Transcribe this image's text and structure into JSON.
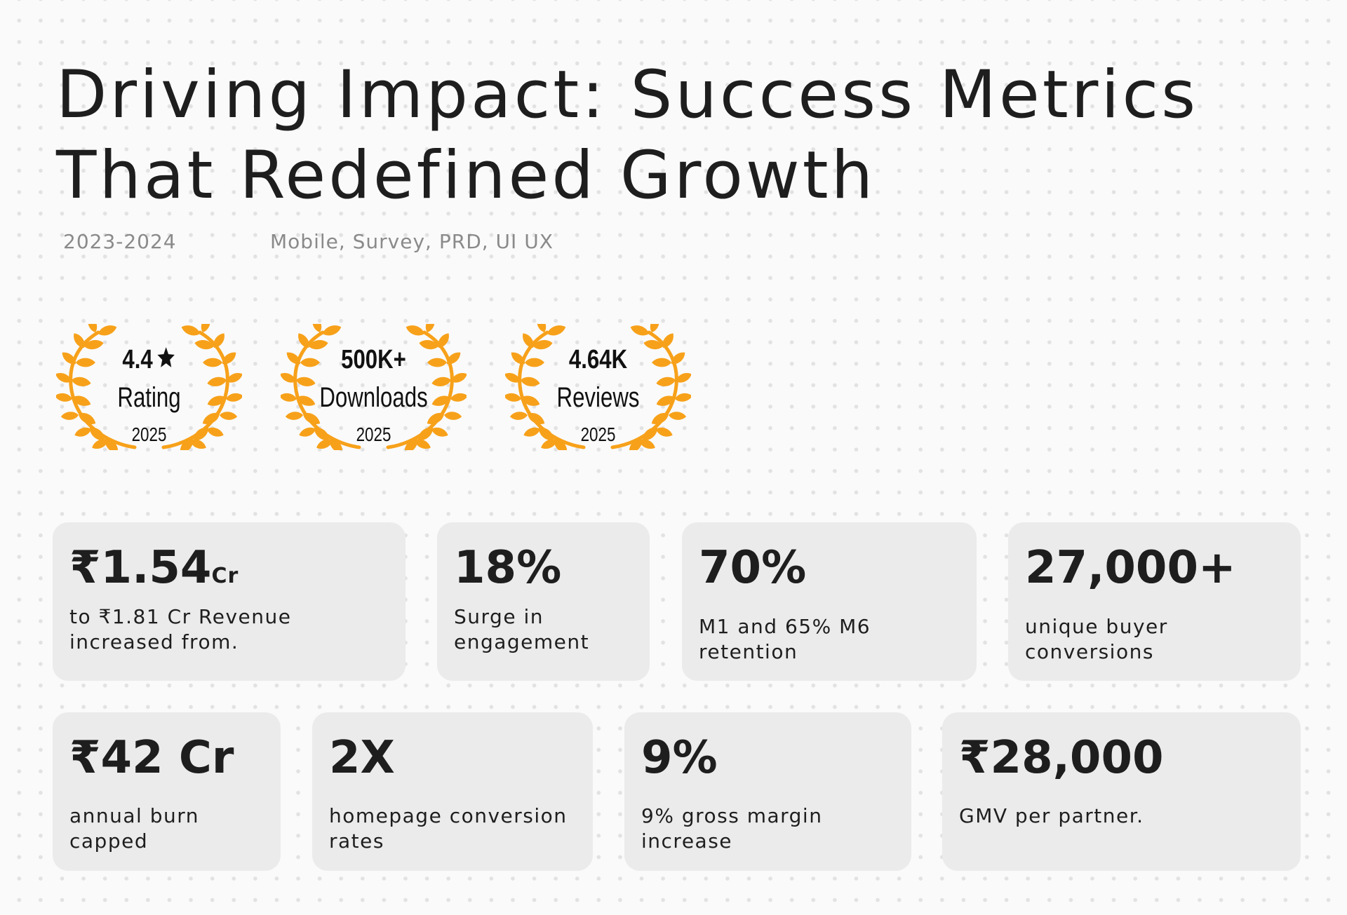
{
  "header": {
    "title_line1": "Driving Impact: Success Metrics",
    "title_line2": "That Redefined Growth",
    "years": "2023-2024",
    "tags": "Mobile, Survey, PRD, UI UX"
  },
  "awards": [
    {
      "top": "4.4",
      "label": "Rating",
      "year": "2025",
      "icon": "star-icon"
    },
    {
      "top": "500K+",
      "label": "Downloads",
      "year": "2025"
    },
    {
      "top": "4.64K",
      "label": "Reviews",
      "year": "2025"
    }
  ],
  "metrics_row1": [
    {
      "value": "₹1.54",
      "suffix": "Cr",
      "desc_line1": "to ₹1.81 Cr Revenue",
      "desc_line2": "increased from."
    },
    {
      "value": "18%",
      "desc_line1": "Surge in",
      "desc_line2": "engagement"
    },
    {
      "value": "70%",
      "desc_line1": "M1 and 65% M6",
      "desc_line2": "retention"
    },
    {
      "value": "27,000+",
      "desc_line1": "unique buyer",
      "desc_line2": "conversions"
    }
  ],
  "metrics_row2": [
    {
      "value": "₹42 Cr",
      "desc_line1": "annual burn",
      "desc_line2": "capped"
    },
    {
      "value": "2X",
      "desc_line1": "homepage conversion",
      "desc_line2": "rates"
    },
    {
      "value": "9%",
      "desc_line1": "9% gross margin",
      "desc_line2": "increase"
    },
    {
      "value": "₹28,000",
      "desc_line1": "GMV per partner."
    }
  ],
  "colors": {
    "laurel": "#f7a11a",
    "card_bg": "#ebebeb",
    "text": "#1e1e1e",
    "muted": "#8a8a8a"
  }
}
